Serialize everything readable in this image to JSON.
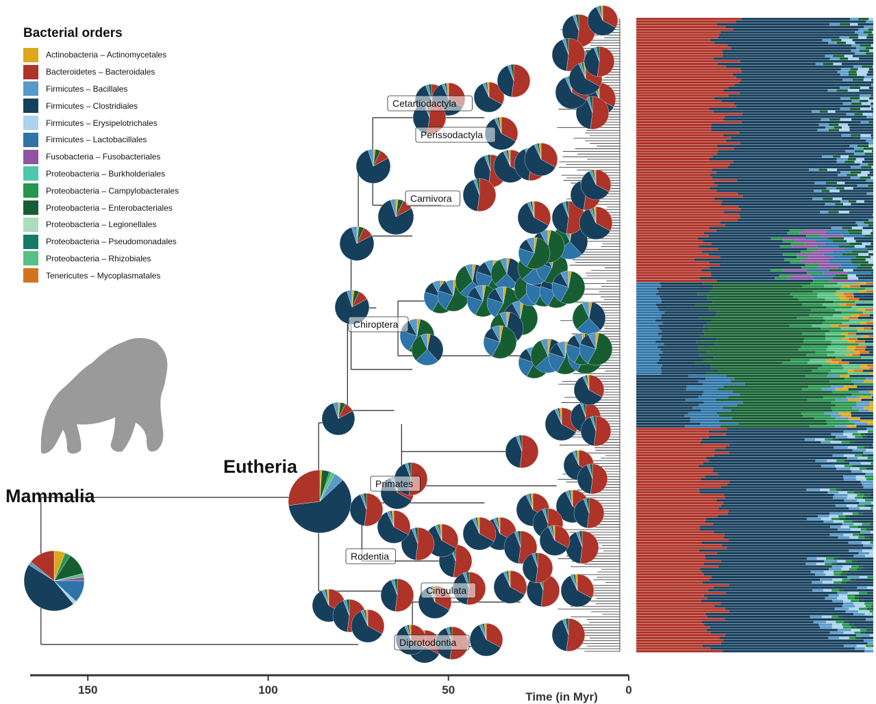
{
  "legend": {
    "title": "Bacterial orders",
    "items": [
      {
        "label": "Actinobacteria – Actinomycetales",
        "color": "#dba81c"
      },
      {
        "label": "Bacteroidetes – Bacteroidales",
        "color": "#ae3328"
      },
      {
        "label": "Firmicutes – Bacillales",
        "color": "#5799c9"
      },
      {
        "label": "Firmicutes – Clostridiales",
        "color": "#163f5c"
      },
      {
        "label": "Firmicutes – Erysipelotrichales",
        "color": "#abd2ef"
      },
      {
        "label": "Firmicutes – Lactobacillales",
        "color": "#2d74a8"
      },
      {
        "label": "Fusobacteria – Fusobacteriales",
        "color": "#8e55a3"
      },
      {
        "label": "Proteobacteria – Burkholderiales",
        "color": "#4fc7ad"
      },
      {
        "label": "Proteobacteria – Campylobacterales",
        "color": "#26954d"
      },
      {
        "label": "Proteobacteria – Enterobacteriales",
        "color": "#165e32"
      },
      {
        "label": "Proteobacteria – Legionellales",
        "color": "#acdcbe"
      },
      {
        "label": "Proteobacteria – Pseudomonadales",
        "color": "#157a66"
      },
      {
        "label": "Proteobacteria – Rhizobiales",
        "color": "#58c084"
      },
      {
        "label": "Tenericutes – Mycoplasmatales",
        "color": "#d3731f"
      }
    ]
  },
  "nodes": {
    "root_label": "Mammalia",
    "eutheria_label": "Eutheria"
  },
  "clades": [
    "Cetartiodactyla",
    "Perissodactyla",
    "Carnivora",
    "Chiroptera",
    "Primates",
    "Rodentia",
    "Cingulata",
    "Diprotodontia"
  ],
  "axis": {
    "title": "Time (in Myr)",
    "ticks": [
      150,
      100,
      50,
      0
    ],
    "range": [
      166,
      0
    ]
  },
  "icon": "gorilla-silhouette-icon",
  "tree": {
    "root_age": 163,
    "eutheria_age": 86,
    "clades": [
      {
        "name": "Cetartiodactyla",
        "dominant": "mixed"
      },
      {
        "name": "Perissodactyla",
        "dominant": "mixed"
      },
      {
        "name": "Carnivora",
        "dominant": "Clostridiales"
      },
      {
        "name": "Chiroptera",
        "dominant": "Enterobacteriales"
      },
      {
        "name": "Primates",
        "dominant": "mixed"
      },
      {
        "name": "Rodentia",
        "dominant": "mixed"
      },
      {
        "name": "Cingulata",
        "dominant": "Clostridiales"
      },
      {
        "name": "Diprotodontia",
        "dominant": "Clostridiales"
      }
    ]
  }
}
